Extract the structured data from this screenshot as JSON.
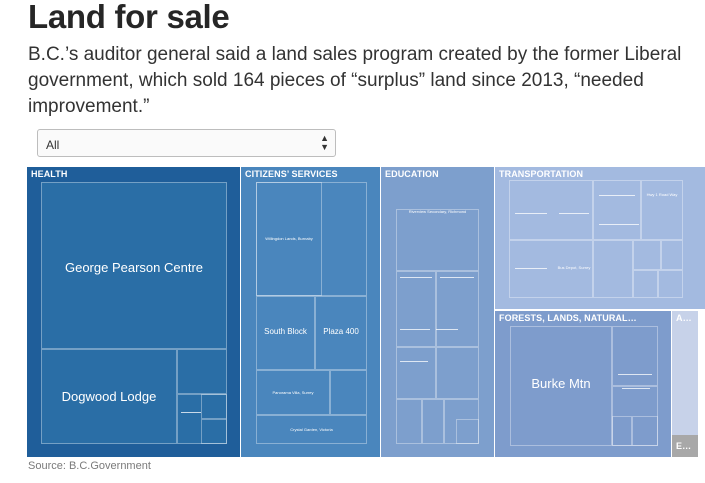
{
  "header": {
    "title": "Land for sale",
    "subtitle": "B.C.’s auditor general said a land sales program created by the former Liberal government, which sold 164 pieces of “surplus” land since 2013, “needed improvement.”"
  },
  "filter": {
    "selected": "All",
    "arrow_icon": "updown-arrow-icon"
  },
  "source": "Source: B.C.Government",
  "chart_data": {
    "type": "treemap",
    "colors": {
      "health": "#2a6ea6",
      "citizens": "#4a86bd",
      "education": "#7d9fcd",
      "transportation": "#a3bae0",
      "forests": "#7e9ccc",
      "other": "#c7d2e9",
      "other_dark": "#a8a8a8",
      "selected_border": "#1f5e9a"
    },
    "groups": [
      {
        "name": "HEALTH",
        "labeled_items": [
          "George Pearson Centre",
          "Dogwood Lodge"
        ]
      },
      {
        "name": "CITIZENS’ SERVICES",
        "labeled_items": [
          "Willingdon Lands, Burnaby",
          "South Block",
          "Plaza 400",
          "Panorama Villa, Surrey",
          "Crystal Garden, Victoria"
        ]
      },
      {
        "name": "EDUCATION",
        "labeled_items": [
          "Riverview Secondary, Richmond"
        ]
      },
      {
        "name": "TRANSPORTATION",
        "labeled_items": [
          "Bus Depot, Surrey",
          "Hwy 1 Road Way"
        ]
      },
      {
        "name": "FORESTS, LANDS, NATURAL…",
        "labeled_items": [
          "Burke Mtn"
        ]
      },
      {
        "name": "A…",
        "labeled_items": []
      },
      {
        "name": "E…",
        "labeled_items": []
      }
    ]
  }
}
